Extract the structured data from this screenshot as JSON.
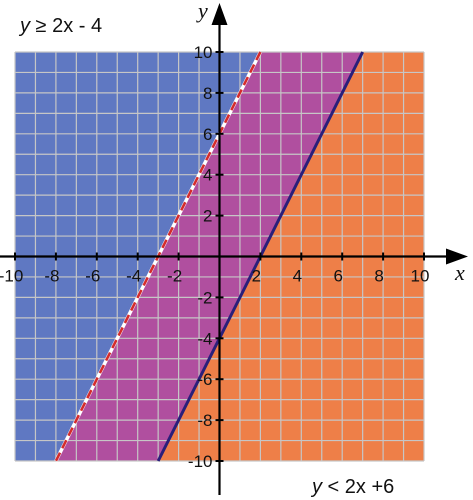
{
  "chart_data": {
    "type": "inequality_region",
    "xlim": [
      -10,
      10
    ],
    "ylim": [
      -10,
      10
    ],
    "x_ticks": [
      "-10",
      "-8",
      "-6",
      "-4",
      "-2",
      "2",
      "4",
      "6",
      "8",
      "10"
    ],
    "y_ticks": [
      "10",
      "8",
      "6",
      "4",
      "2",
      "-2",
      "-4",
      "-6",
      "-8",
      "-10"
    ],
    "grid_step": 1,
    "grid": true,
    "xlabel": "x",
    "ylabel": "y",
    "annotations": {
      "top_left": {
        "var": "y",
        "rest": " ≥ 2x - 4"
      },
      "bottom_right": {
        "var": "y",
        "rest": " < 2x +6"
      }
    },
    "lines": [
      {
        "slope": 2,
        "intercept": 6,
        "style": "dashed",
        "color": "#d42c2c"
      },
      {
        "slope": 2,
        "intercept": -4,
        "style": "solid",
        "color": "#2a1f7a"
      }
    ],
    "regions": [
      {
        "description": "y ≥ 2x + 6",
        "color": "#5f78c2"
      },
      {
        "description": "2x - 4 ≤ y < 2x + 6",
        "color": "#b04f9f"
      },
      {
        "description": "y < 2x - 4",
        "color": "#ee7f48"
      }
    ]
  }
}
